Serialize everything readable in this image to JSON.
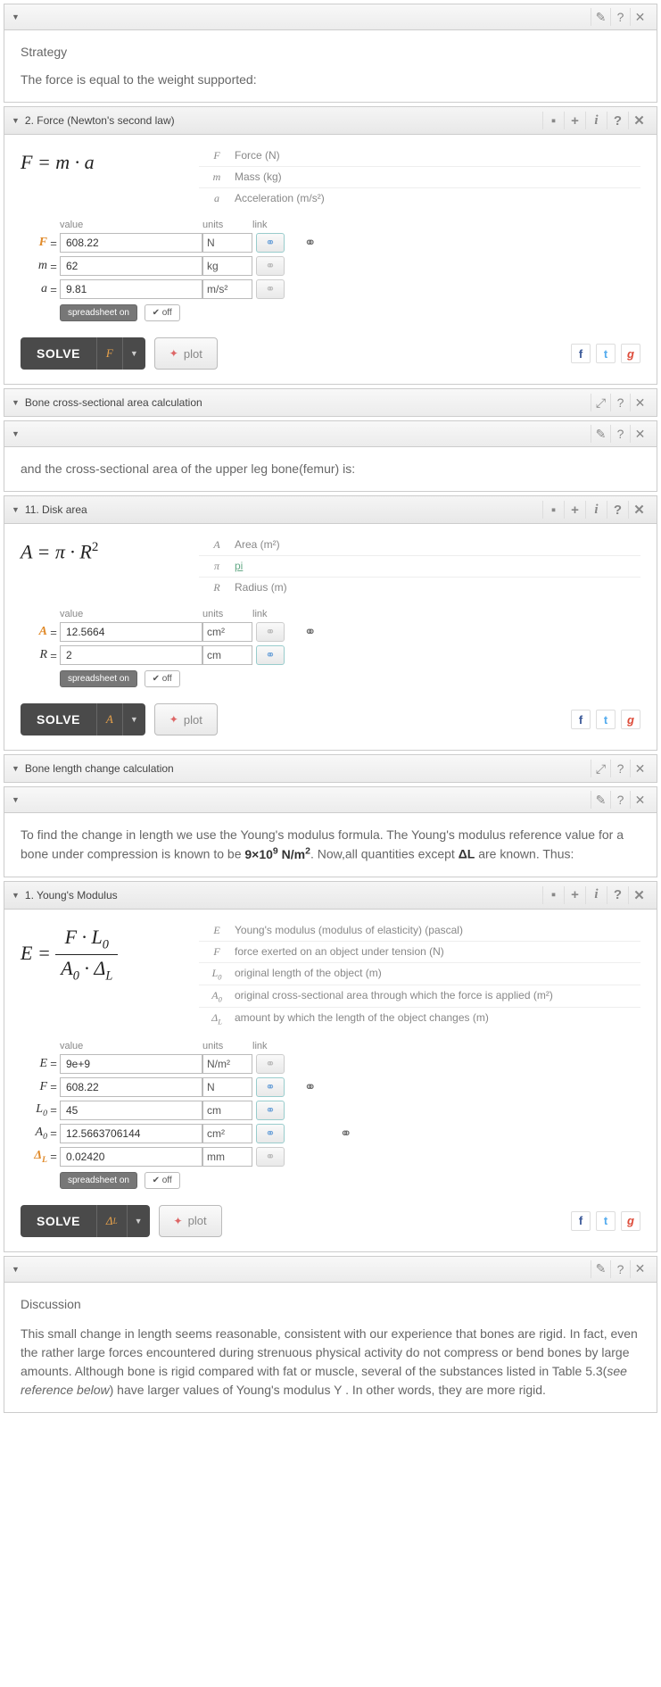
{
  "common": {
    "solve_label": "SOLVE",
    "plot_label": "plot",
    "ss_on": "spreadsheet on",
    "ss_off": "✔ off",
    "hdr_value": "value",
    "hdr_units": "units",
    "hdr_link": "link"
  },
  "p0": {
    "strategy_h": "Strategy",
    "strategy_t": "The force is equal to the weight supported:"
  },
  "p1": {
    "title": "2. Force (Newton's second law)",
    "formula_html": "F = m · a",
    "legend": [
      {
        "s": "F",
        "d": "Force (N)"
      },
      {
        "s": "m",
        "d": "Mass (kg)"
      },
      {
        "s": "a",
        "d": "Acceleration (m/s²)"
      }
    ],
    "vars": [
      {
        "s": "F",
        "hl": true,
        "v": "608.22",
        "u": "N",
        "link": true,
        "chain": true
      },
      {
        "s": "m",
        "hl": false,
        "v": "62",
        "u": "kg",
        "link": false
      },
      {
        "s": "a",
        "hl": false,
        "v": "9.81",
        "u": "m/s²",
        "link": false
      }
    ],
    "solve_var": "F"
  },
  "p2": {
    "title": "Bone cross-sectional area calculation",
    "text": "and the cross-sectional area of the upper leg bone(femur) is:"
  },
  "p3": {
    "title": "11. Disk area",
    "formula_html": "A = π · R<sup>2</sup>",
    "legend": [
      {
        "s": "A",
        "d": "Area (m²)"
      },
      {
        "s": "π",
        "d": "pi",
        "link": true
      },
      {
        "s": "R",
        "d": "Radius (m)"
      }
    ],
    "vars": [
      {
        "s": "A",
        "hl": true,
        "v": "12.5664",
        "u": "cm²",
        "link": false,
        "chain": true
      },
      {
        "s": "R",
        "hl": false,
        "v": "2",
        "u": "cm",
        "link": true
      }
    ],
    "solve_var": "A"
  },
  "p4": {
    "title": "Bone length change calculation",
    "text_html": "To find the change in length we use the Young's modulus formula. The Young's modulus reference value for a bone under compression is known to be <b>9×10<sup>9</sup> N/m<sup>2</sup></b>. Now,all quantities except <b>ΔL</b> are known. Thus:"
  },
  "p5": {
    "title": "1. Young's Modulus",
    "legend": [
      {
        "s": "E",
        "d": "Young's modulus (modulus of elasticity) (pascal)"
      },
      {
        "s": "F",
        "d": "force exerted on an object under tension (N)"
      },
      {
        "s": "L₀",
        "d": "original length of the object (m)"
      },
      {
        "s": "A₀",
        "d": "original cross-sectional area through which the force is applied (m²)"
      },
      {
        "s": "Δ_L",
        "d": "amount by which the length of the object changes (m)"
      }
    ],
    "vars": [
      {
        "s": "E",
        "hl": false,
        "v": "9e+9",
        "u": "N/m²",
        "link": false
      },
      {
        "s": "F",
        "hl": false,
        "v": "608.22",
        "u": "N",
        "link": true,
        "chain": true
      },
      {
        "s": "L₀",
        "hl": false,
        "v": "45",
        "u": "cm",
        "link": true
      },
      {
        "s": "A₀",
        "hl": false,
        "v": "12.5663706144",
        "u": "cm²",
        "link": true,
        "chain": true,
        "chain_off": true
      },
      {
        "s": "Δ_L",
        "hl": true,
        "v": "0.02420",
        "u": "mm",
        "link": false
      }
    ],
    "solve_var_html": "Δ<sub>L</sub>"
  },
  "p6": {
    "h": "Discussion",
    "t": "This small change in length seems reasonable, consistent with our experience that bones are rigid. In fact, even the rather large forces encountered during strenuous physical activity do not compress or bend bones by large amounts. Although bone is rigid compared with fat or muscle, several of the substances listed in Table 5.3(see reference below) have larger values of Young's modulus Y . In other words, they are more rigid."
  },
  "colors": {
    "highlight": "#e08a2a",
    "solve_bg": "#4a4a4a",
    "link_active": "#6aa0d8"
  }
}
